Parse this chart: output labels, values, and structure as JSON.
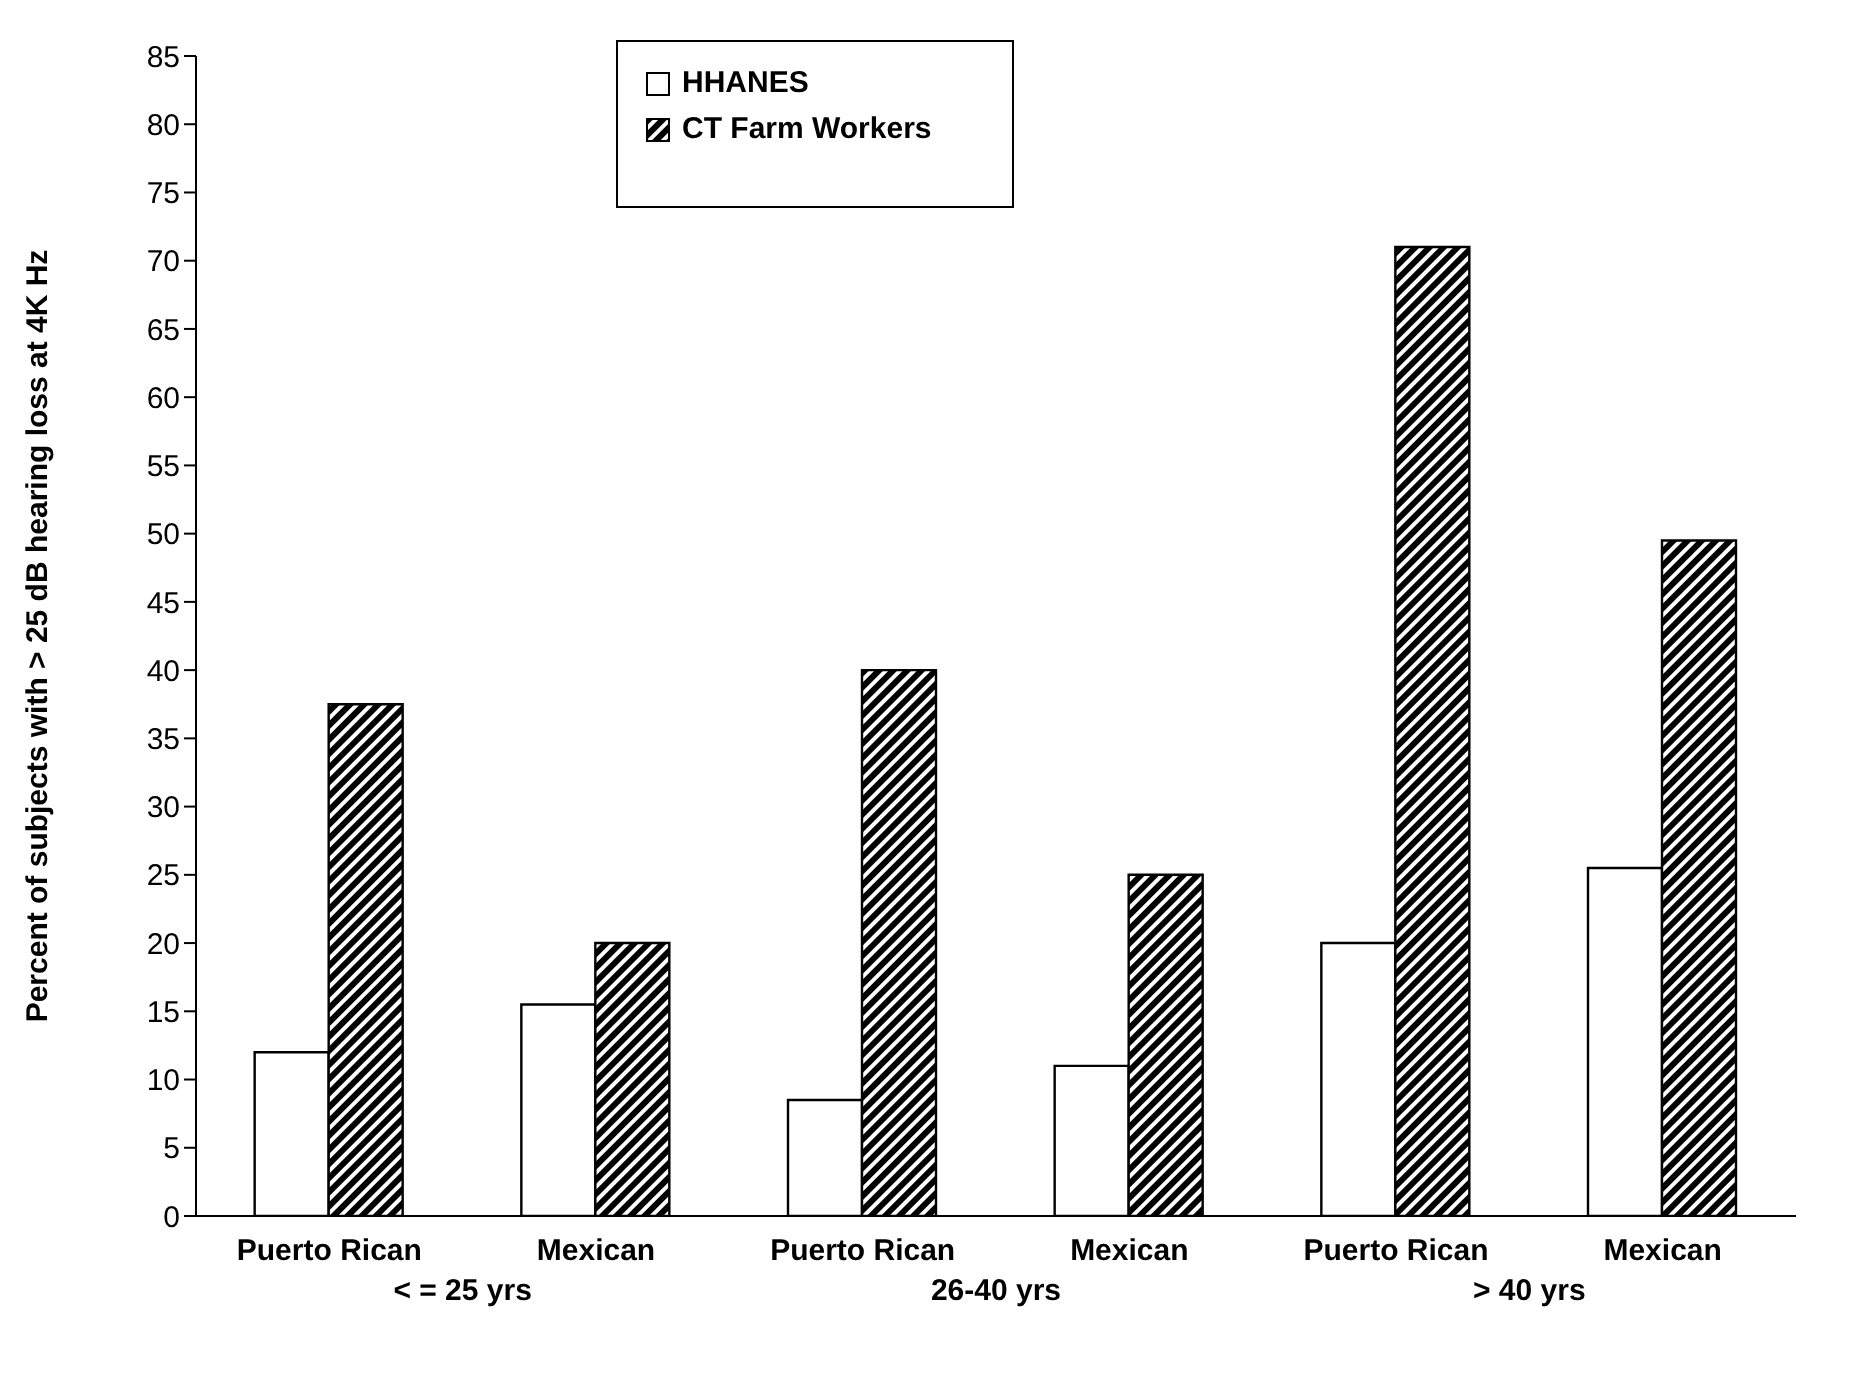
{
  "chart_data": {
    "type": "bar",
    "ylabel": "Percent of subjects with > 25 dB hearing loss at 4K Hz",
    "categories": [
      "Puerto Rican",
      "Mexican",
      "Puerto Rican",
      "Mexican",
      "Puerto Rican",
      "Mexican"
    ],
    "series": [
      {
        "name": "HHANES",
        "color": "#ffffff",
        "values": [
          12,
          15.5,
          8.5,
          11,
          20,
          25.5
        ]
      },
      {
        "name": "CT Farm Workers",
        "color": "#000000",
        "values": [
          37.5,
          20,
          40,
          25,
          71,
          49.5
        ]
      }
    ],
    "annotations": [
      "< = 25 yrs",
      "26-40 yrs",
      "> 40 yrs"
    ],
    "ylim": [
      0,
      85
    ],
    "yticks": [
      0,
      5,
      10,
      15,
      20,
      25,
      30,
      35,
      40,
      45,
      50,
      55,
      60,
      65,
      70,
      75,
      80,
      85
    ],
    "grid": false,
    "legend": "top"
  }
}
